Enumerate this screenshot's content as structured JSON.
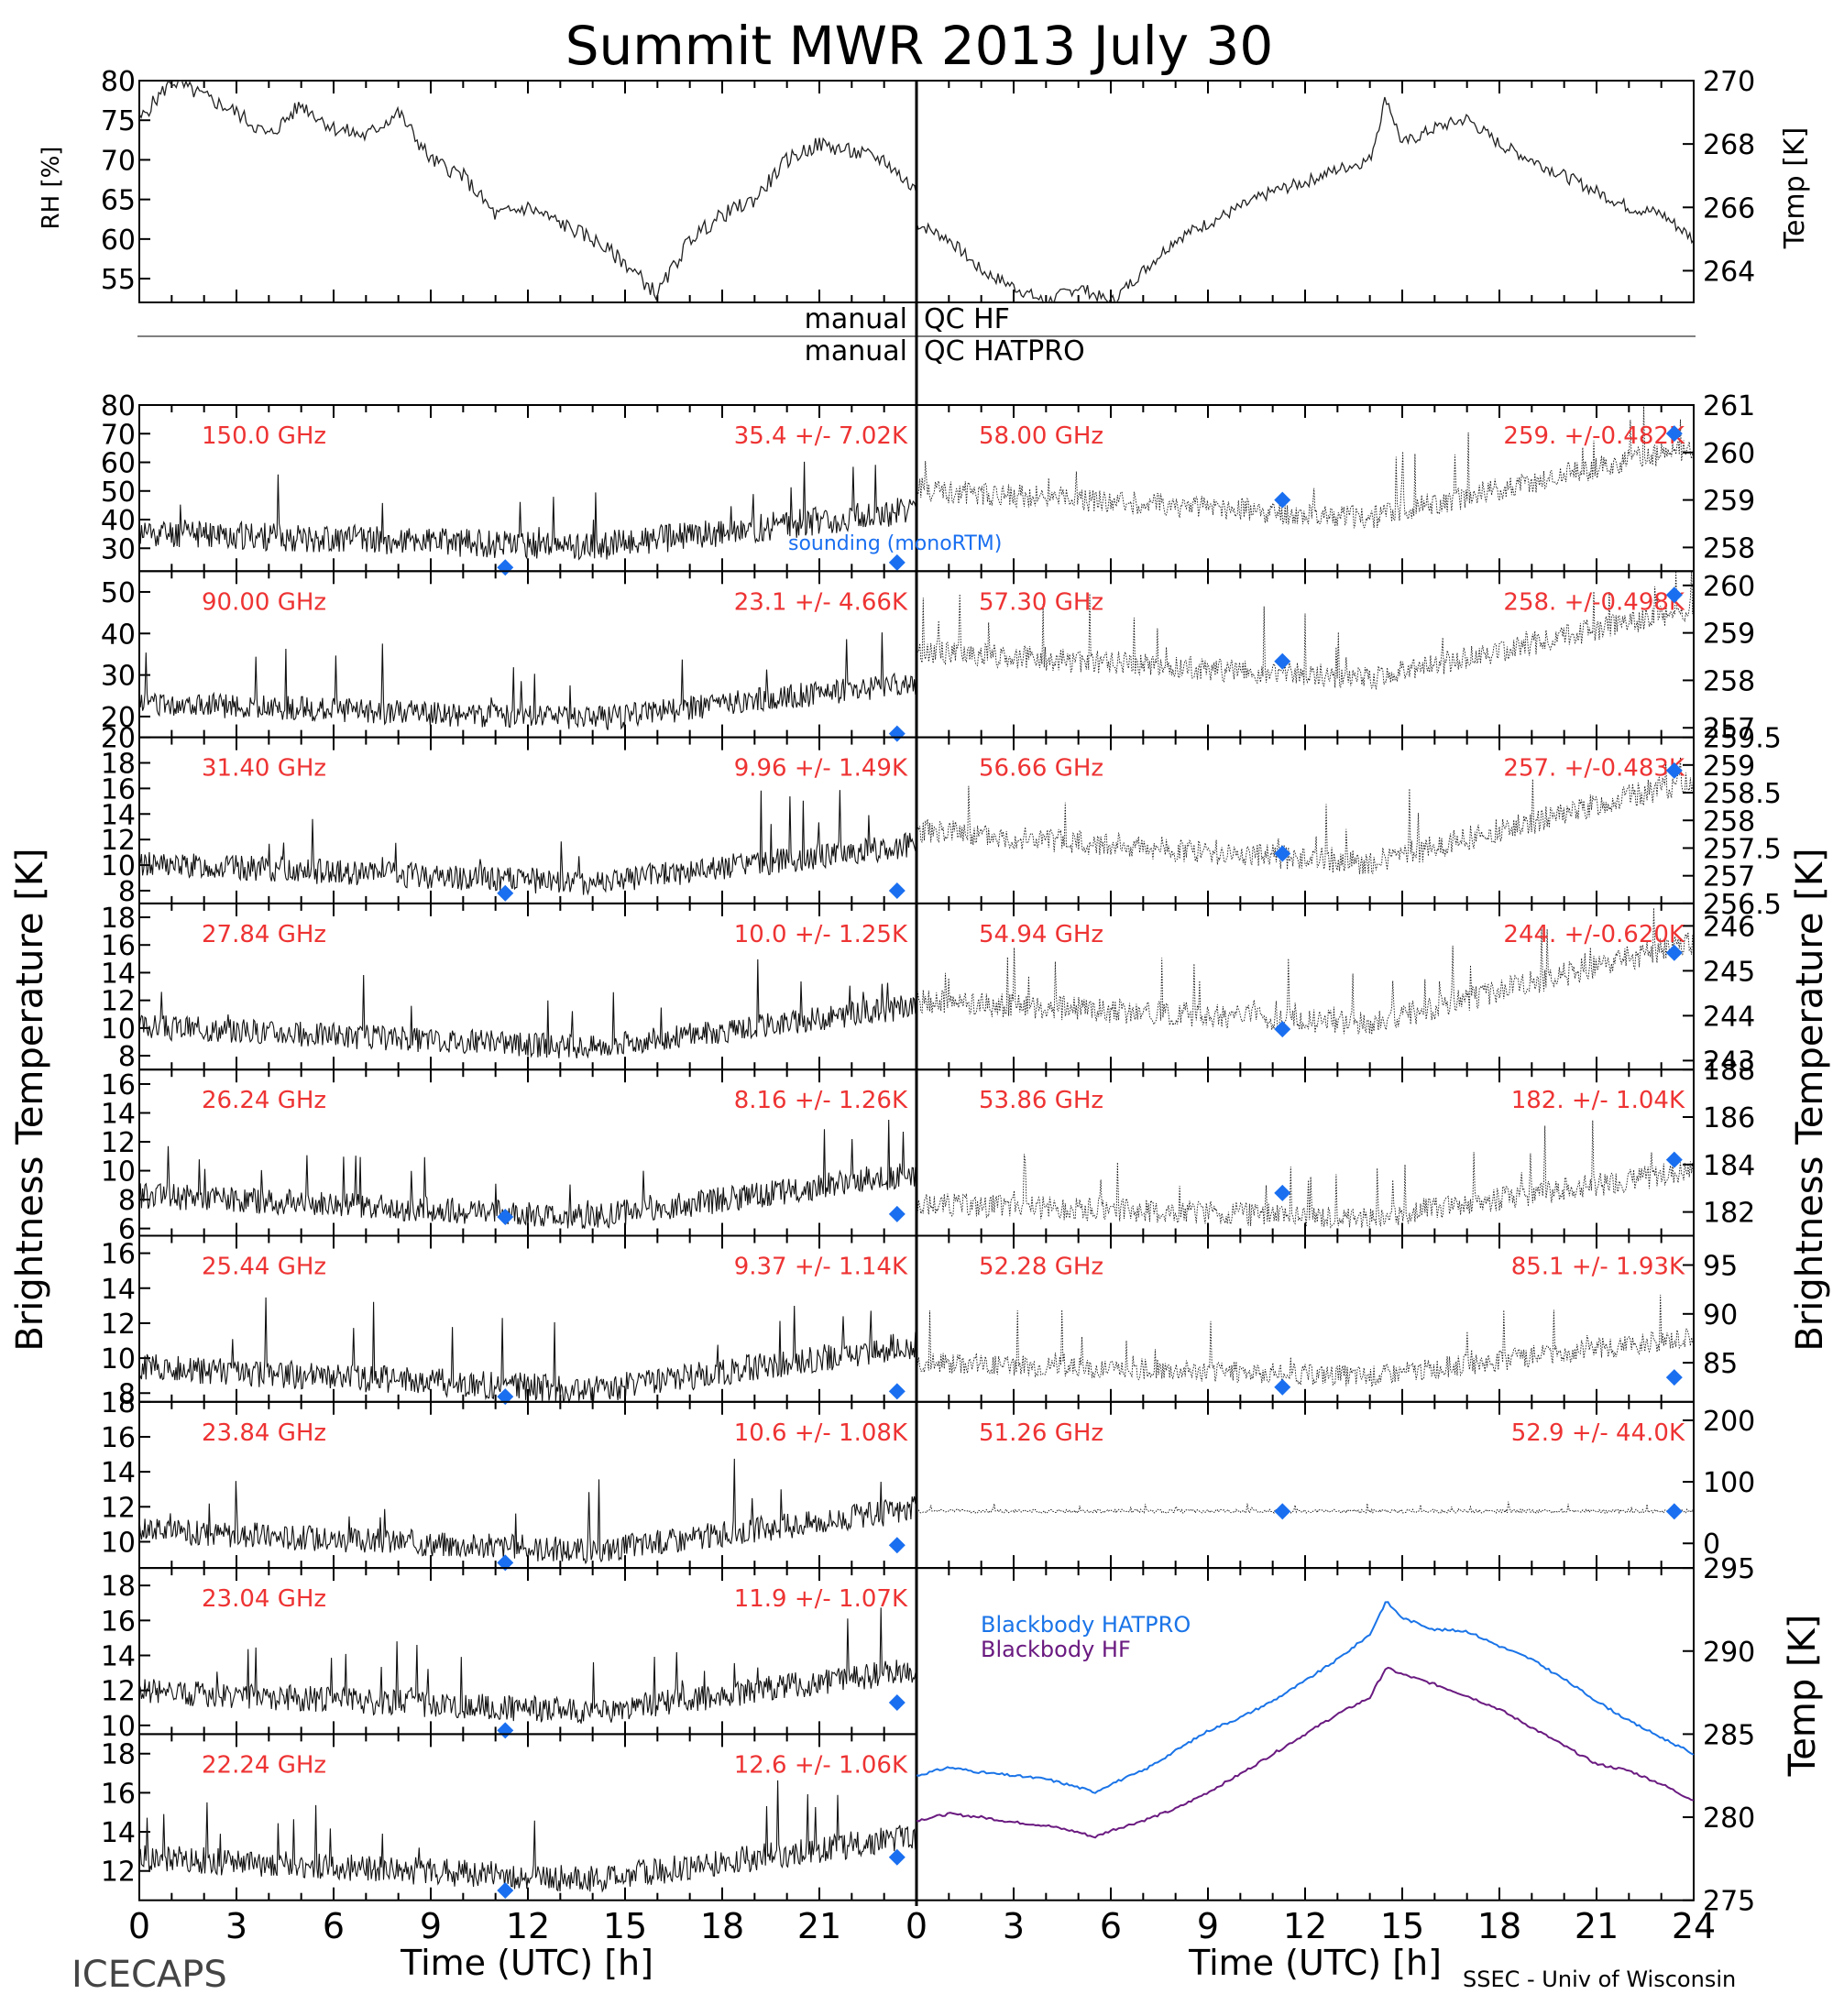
{
  "title": "Summit MWR 2013 July 30",
  "footer": {
    "left": "ICECAPS",
    "right": "SSEC - Univ of Wisconsin"
  },
  "colors": {
    "label_red": "#ee3333",
    "sounding_blue": "#1a6ff0",
    "hatpro_blue": "#1a74e8",
    "hf_purple": "#6a1a80",
    "ink": "#000000"
  },
  "x_axis": {
    "label": "Time (UTC) [h]",
    "range": [
      0,
      24
    ],
    "ticks": [
      "0",
      "3",
      "6",
      "9",
      "12",
      "15",
      "18",
      "21",
      "24"
    ],
    "left_ticks": [
      "0",
      "3",
      "6",
      "9",
      "12",
      "15",
      "18",
      "21"
    ]
  },
  "qc_labels": {
    "row1_left": "manual",
    "row1_right": "QC HF",
    "row2_left": "manual",
    "row2_right": "QC HATPRO"
  },
  "y_axis_labels": {
    "left_main": "Brightness Temperature [K]",
    "right_main": "Brightness Temperature [K]",
    "rh": "RH [%]",
    "temp_top": "Temp [K]",
    "temp_bottom": "Temp [K]"
  },
  "legend": {
    "sounding": "sounding (monoRTM)",
    "blackbody_hatpro": "Blackbody HATPRO",
    "blackbody_hf": "Blackbody HF"
  },
  "chart_data": [
    {
      "type": "line",
      "panel": "rh",
      "ylabel": "RH [%]",
      "ylim": [
        52,
        80
      ],
      "yticks": [
        55,
        60,
        65,
        70,
        75,
        80
      ],
      "x": [
        0,
        1,
        2,
        3,
        4,
        5,
        6,
        7,
        8,
        9,
        10,
        11,
        12,
        13,
        14,
        15,
        16,
        17,
        18,
        19,
        20,
        21,
        22,
        23,
        24
      ],
      "values": [
        75,
        80,
        78,
        76,
        73,
        77,
        74,
        73,
        76,
        70,
        68,
        63,
        64,
        62,
        60,
        57,
        53,
        60,
        63,
        65,
        70,
        72,
        71,
        70,
        66
      ]
    },
    {
      "type": "line",
      "panel": "air_temp",
      "ylabel": "Temp [K]",
      "ylim": [
        263,
        270
      ],
      "yticks": [
        264,
        266,
        268,
        270
      ],
      "x": [
        0,
        1,
        2,
        3,
        4,
        5,
        6,
        7,
        8,
        9,
        10,
        11,
        12,
        13,
        14,
        14.5,
        15,
        16,
        17,
        18,
        19,
        20,
        21,
        22,
        23,
        24
      ],
      "values": [
        265.5,
        265,
        264,
        263.5,
        263,
        263.5,
        263,
        264,
        265,
        265.5,
        266,
        266.5,
        266.8,
        267.2,
        267.5,
        269.5,
        268,
        268.5,
        268.8,
        268,
        267.5,
        267,
        266.5,
        266,
        265.8,
        265
      ]
    },
    {
      "type": "line",
      "side": "left",
      "label": "150.0 GHz",
      "stats": "35.4 +/-  7.02K",
      "ylim": [
        22,
        80
      ],
      "yticks": [
        30,
        40,
        50,
        60,
        70,
        80
      ],
      "base": 35,
      "trend": [
        0,
        -5,
        8
      ],
      "noise": 10,
      "seed": 11,
      "sounding": [
        {
          "x": 11.3,
          "y": 22.5
        },
        {
          "x": 23.4,
          "y": 25
        }
      ]
    },
    {
      "type": "line",
      "side": "left",
      "label": "90.00 GHz",
      "stats": "23.1 +/-  4.66K",
      "ylim": [
        15,
        55
      ],
      "yticks": [
        20,
        30,
        40,
        50
      ],
      "base": 23,
      "trend": [
        0,
        -4,
        5
      ],
      "noise": 6,
      "seed": 12,
      "sounding": [
        {
          "x": 23.4,
          "y": 15.8
        }
      ]
    },
    {
      "type": "line",
      "side": "left",
      "label": "31.40 GHz",
      "stats": "9.96 +/- 1.49K",
      "ylim": [
        7,
        20
      ],
      "yticks": [
        8,
        10,
        12,
        14,
        16,
        18,
        20
      ],
      "base": 10,
      "trend": [
        0,
        -1.5,
        1.5
      ],
      "noise": 2,
      "seed": 13,
      "sounding": [
        {
          "x": 11.3,
          "y": 7.8
        },
        {
          "x": 23.4,
          "y": 8
        }
      ]
    },
    {
      "type": "line",
      "side": "left",
      "label": "27.84 GHz",
      "stats": "10.0 +/- 1.25K",
      "ylim": [
        7,
        19
      ],
      "yticks": [
        8,
        10,
        12,
        14,
        16,
        18
      ],
      "base": 10,
      "trend": [
        0,
        -1.5,
        1.5
      ],
      "noise": 1.8,
      "seed": 14,
      "sounding": []
    },
    {
      "type": "line",
      "side": "left",
      "label": "26.24 GHz",
      "stats": "8.16 +/- 1.26K",
      "ylim": [
        5.5,
        17
      ],
      "yticks": [
        6,
        8,
        10,
        12,
        14,
        16
      ],
      "base": 8.2,
      "trend": [
        0,
        -1.5,
        1.5
      ],
      "noise": 1.8,
      "seed": 15,
      "sounding": [
        {
          "x": 11.3,
          "y": 6.8
        },
        {
          "x": 23.4,
          "y": 7
        }
      ]
    },
    {
      "type": "line",
      "side": "left",
      "label": "25.44 GHz",
      "stats": "9.37 +/- 1.14K",
      "ylim": [
        7.5,
        17
      ],
      "yticks": [
        8,
        10,
        12,
        14,
        16
      ],
      "base": 9.4,
      "trend": [
        0,
        -1.3,
        1.3
      ],
      "noise": 1.6,
      "seed": 16,
      "sounding": [
        {
          "x": 11.3,
          "y": 7.8
        },
        {
          "x": 23.4,
          "y": 8.1
        }
      ]
    },
    {
      "type": "line",
      "side": "left",
      "label": "23.84 GHz",
      "stats": "10.6 +/- 1.08K",
      "ylim": [
        8.5,
        18
      ],
      "yticks": [
        10,
        12,
        14,
        16,
        18
      ],
      "base": 10.6,
      "trend": [
        0,
        -1.2,
        1.2
      ],
      "noise": 1.5,
      "seed": 17,
      "sounding": [
        {
          "x": 11.3,
          "y": 8.8
        },
        {
          "x": 23.4,
          "y": 9.8
        }
      ]
    },
    {
      "type": "line",
      "side": "left",
      "label": "23.04 GHz",
      "stats": "11.9 +/- 1.07K",
      "ylim": [
        9.5,
        19
      ],
      "yticks": [
        10,
        12,
        14,
        16,
        18
      ],
      "base": 11.9,
      "trend": [
        0,
        -1.2,
        1.2
      ],
      "noise": 1.5,
      "seed": 18,
      "sounding": [
        {
          "x": 11.3,
          "y": 9.7
        },
        {
          "x": 23.4,
          "y": 11.3
        }
      ]
    },
    {
      "type": "line",
      "side": "left",
      "label": "22.24 GHz",
      "stats": "12.6 +/- 1.06K",
      "ylim": [
        10.5,
        19
      ],
      "yticks": [
        12,
        14,
        16,
        18
      ],
      "base": 12.6,
      "trend": [
        0,
        -1.1,
        1.1
      ],
      "noise": 1.4,
      "seed": 19,
      "sounding": [
        {
          "x": 11.3,
          "y": 11
        },
        {
          "x": 23.4,
          "y": 12.7
        }
      ]
    },
    {
      "type": "scatter",
      "side": "right",
      "label": "58.00 GHz",
      "stats": "259. +/-0.482K",
      "ylim": [
        257.5,
        261
      ],
      "yticks": [
        258,
        259,
        260,
        261
      ],
      "base": 259.2,
      "trend": [
        0,
        -0.6,
        0.9
      ],
      "noise": 0.5,
      "seed": 21,
      "sounding": [
        {
          "x": 11.3,
          "y": 259
        },
        {
          "x": 23.4,
          "y": 260.4
        }
      ]
    },
    {
      "type": "scatter",
      "side": "right",
      "label": "57.30 GHz",
      "stats": "258. +/-0.498K",
      "ylim": [
        256.8,
        260.3
      ],
      "yticks": [
        257,
        258,
        259,
        260
      ],
      "base": 258.6,
      "trend": [
        0,
        -0.6,
        0.9
      ],
      "noise": 0.5,
      "seed": 22,
      "sounding": [
        {
          "x": 11.3,
          "y": 258.4
        },
        {
          "x": 23.4,
          "y": 259.8
        }
      ]
    },
    {
      "type": "scatter",
      "side": "right",
      "label": "56.66 GHz",
      "stats": "257. +/-0.483K",
      "ylim": [
        256.5,
        259.5
      ],
      "yticks": [
        256.5,
        257,
        257.5,
        258,
        258.5,
        259,
        259.5
      ],
      "base": 257.8,
      "trend": [
        0,
        -0.6,
        0.9
      ],
      "noise": 0.45,
      "seed": 23,
      "sounding": [
        {
          "x": 11.3,
          "y": 257.4
        },
        {
          "x": 23.4,
          "y": 258.9
        }
      ]
    },
    {
      "type": "scatter",
      "side": "right",
      "label": "54.94 GHz",
      "stats": "244. +/-0.620K",
      "ylim": [
        242.8,
        246.5
      ],
      "yticks": [
        243,
        244,
        245,
        246
      ],
      "base": 244.3,
      "trend": [
        0,
        -0.5,
        1.3
      ],
      "noise": 0.55,
      "seed": 24,
      "sounding": [
        {
          "x": 11.3,
          "y": 243.7
        },
        {
          "x": 23.4,
          "y": 245.4
        }
      ]
    },
    {
      "type": "scatter",
      "side": "right",
      "label": "53.86 GHz",
      "stats": "182. +/- 1.04K",
      "ylim": [
        181,
        188
      ],
      "yticks": [
        182,
        184,
        186,
        188
      ],
      "base": 182.3,
      "trend": [
        0,
        -0.6,
        1.4
      ],
      "noise": 1.0,
      "seed": 25,
      "sounding": [
        {
          "x": 11.3,
          "y": 182.8
        },
        {
          "x": 23.4,
          "y": 184.2
        }
      ]
    },
    {
      "type": "scatter",
      "side": "right",
      "label": "52.28 GHz",
      "stats": "85.1 +/- 1.93K",
      "ylim": [
        81,
        98
      ],
      "yticks": [
        85,
        90,
        95
      ],
      "base": 85,
      "trend": [
        0,
        -1.5,
        2.5
      ],
      "noise": 2.2,
      "seed": 26,
      "sounding": [
        {
          "x": 11.3,
          "y": 82.5
        },
        {
          "x": 23.4,
          "y": 83.5
        }
      ]
    },
    {
      "type": "scatter",
      "side": "right",
      "label": "51.26 GHz",
      "stats": "52.9 +/- 44.0K",
      "ylim": [
        -40,
        230
      ],
      "yticks": [
        0,
        100,
        200
      ],
      "base": 52,
      "trend": [
        0,
        0,
        0
      ],
      "noise": 6,
      "seed": 27,
      "sounding": [
        {
          "x": 11.3,
          "y": 52
        },
        {
          "x": 23.4,
          "y": 52
        }
      ]
    },
    {
      "type": "line",
      "panel": "blackbody",
      "ylabel": "Temp [K]",
      "ylim": [
        275,
        295
      ],
      "yticks": [
        275,
        280,
        285,
        290,
        295
      ],
      "x": [
        0,
        1,
        2,
        3,
        4,
        5,
        5.5,
        6,
        7,
        8,
        9,
        10,
        11,
        12,
        13,
        14,
        14.5,
        15,
        16,
        17,
        18,
        19,
        20,
        21,
        22,
        23,
        24
      ],
      "series": [
        {
          "name": "Blackbody HATPRO",
          "values": [
            282.5,
            283,
            282.7,
            282.5,
            282.3,
            281.8,
            281.5,
            282,
            282.8,
            284,
            285.2,
            286,
            287,
            288.2,
            289.5,
            291,
            293,
            292,
            291.3,
            291.2,
            290.3,
            289.5,
            288.3,
            287,
            285.8,
            284.8,
            283.8
          ]
        },
        {
          "name": "Blackbody HF",
          "values": [
            279.8,
            280.2,
            280,
            279.7,
            279.5,
            279.1,
            278.8,
            279.2,
            279.8,
            280.5,
            281.5,
            282.6,
            283.8,
            285,
            286.2,
            287.2,
            289,
            288.6,
            288,
            287.3,
            286.5,
            285.4,
            284.3,
            283.2,
            282.8,
            282,
            281
          ]
        }
      ]
    }
  ]
}
